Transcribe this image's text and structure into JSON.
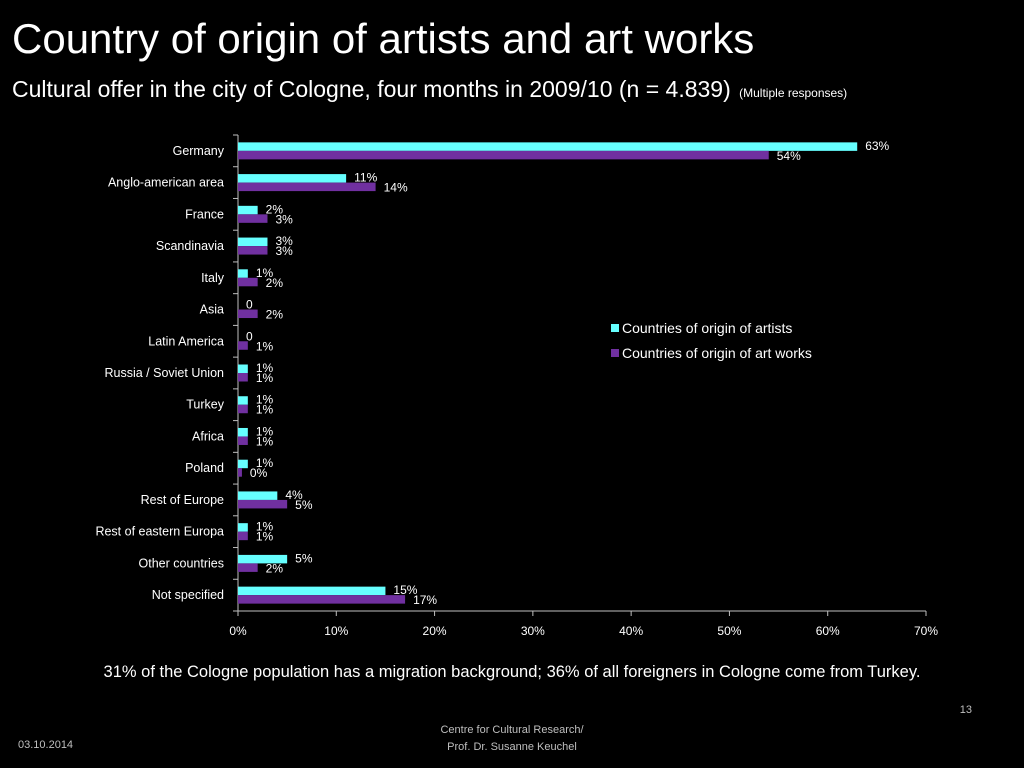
{
  "slide": {
    "title": "Country of origin of artists and art works",
    "subtitle": "Cultural offer in the city of Cologne, four months in 2009/10 (n = 4.839)",
    "subtitle_note": "(Multiple responses)",
    "footnote": "31% of the Cologne population has a migration background; 36% of all foreigners in Cologne come from Turkey.",
    "page_number": "13",
    "credit_line1": "Centre for Cultural Research/",
    "credit_line2": "Prof. Dr. Susanne Keuchel",
    "date": "03.10.2014"
  },
  "chart_data": {
    "type": "bar",
    "orientation": "horizontal",
    "categories": [
      "Germany",
      "Anglo-american area",
      "France",
      "Scandinavia",
      "Italy",
      "Asia",
      "Latin America",
      "Russia / Soviet Union",
      "Turkey",
      "Africa",
      "Poland",
      "Rest of Europe",
      "Rest of eastern Europa",
      "Other countries",
      "Not specified"
    ],
    "series": [
      {
        "name": "Countries of origin of artists",
        "color": "#66ffff",
        "values": [
          63,
          11,
          2,
          3,
          1,
          0,
          0,
          1,
          1,
          1,
          1,
          4,
          1,
          5,
          15
        ],
        "labels": [
          "63%",
          "11%",
          "2%",
          "3%",
          "1%",
          "0",
          "0",
          "1%",
          "1%",
          "1%",
          "1%",
          "4%",
          "1%",
          "5%",
          "15%"
        ]
      },
      {
        "name": "Countries of origin of art works",
        "color": "#7030a0",
        "values": [
          54,
          14,
          3,
          3,
          2,
          2,
          1,
          1,
          1,
          1,
          0.4,
          5,
          1,
          2,
          17
        ],
        "labels": [
          "54%",
          "14%",
          "3%",
          "3%",
          "2%",
          "2%",
          "1%",
          "1%",
          "1%",
          "1%",
          "0%",
          "5%",
          "1%",
          "2%",
          "17%"
        ]
      }
    ],
    "x_ticks": [
      "0%",
      "10%",
      "20%",
      "30%",
      "40%",
      "50%",
      "60%",
      "70%"
    ],
    "xlim": [
      0,
      70
    ],
    "grid": false,
    "legend_position": "right"
  }
}
